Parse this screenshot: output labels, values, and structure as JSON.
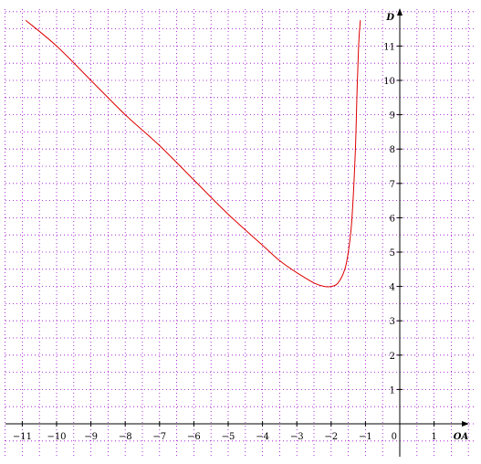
{
  "chart_data": {
    "type": "line",
    "xlabel": "OA",
    "ylabel": "D",
    "xlim": [
      -11.5,
      2.0
    ],
    "ylim": [
      -0.5,
      11.75
    ],
    "x_ticks": [
      -11,
      -10,
      -9,
      -8,
      -7,
      -6,
      -5,
      -4,
      -3,
      -2,
      -1,
      1
    ],
    "x_tick_labels": [
      "−11",
      "−10",
      "−9",
      "−8",
      "−7",
      "−6",
      "−5",
      "−4",
      "−3",
      "−2",
      "−1",
      "1"
    ],
    "y_ticks": [
      1,
      2,
      3,
      4,
      5,
      6,
      7,
      8,
      9,
      10,
      11
    ],
    "y_tick_labels": [
      "1",
      "2",
      "3",
      "4",
      "5",
      "6",
      "7",
      "8",
      "9",
      "10",
      "11"
    ],
    "origin_label": "0",
    "grid": true,
    "grid_step": 0.5,
    "colors": {
      "curve": "#dd0000",
      "grid": "#9900cc",
      "axis": "#000000"
    },
    "series": [
      {
        "x": [
          -10.9,
          -10.0,
          -9.0,
          -8.0,
          -7.0,
          -6.0,
          -5.0,
          -4.0,
          -3.5,
          -3.0,
          -2.5,
          -2.2,
          -2.0,
          -1.8,
          -1.6,
          -1.5,
          -1.4,
          -1.3,
          -1.25,
          -1.2,
          -1.15
        ],
        "y": [
          11.75,
          11.0,
          10.0,
          9.0,
          8.1,
          7.1,
          6.1,
          5.2,
          4.75,
          4.4,
          4.1,
          4.0,
          4.0,
          4.1,
          4.5,
          5.0,
          5.9,
          7.8,
          9.5,
          11.0,
          11.75
        ]
      }
    ]
  }
}
